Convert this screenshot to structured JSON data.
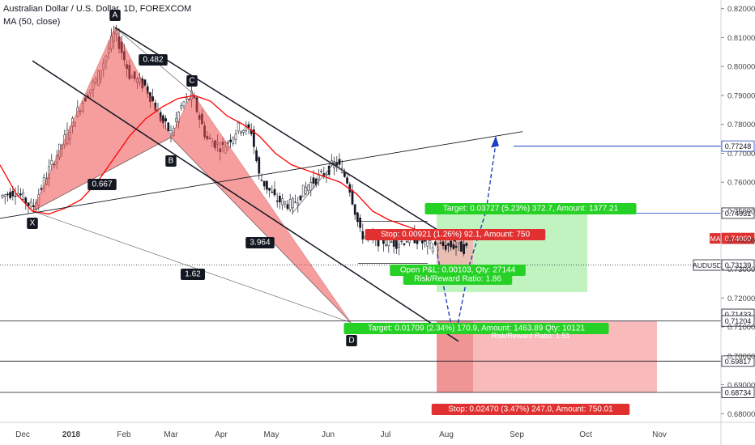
{
  "header": {
    "title": "Australian Dollar / U.S. Dollar, 1D, FOREXCOM",
    "indicator": "MA (50, close)"
  },
  "colors": {
    "bull": "#131722",
    "pattern_fill": "#f05050",
    "ma_line": "#ff0000",
    "projection": "#1f3fbf",
    "target_green": "#26d126",
    "stop_red": "#e03030",
    "profit_zone": "#b2f0b2",
    "loss_zone": "#f5a3a3"
  },
  "chart_data": {
    "type": "candlestick",
    "x_axis_labels": [
      "Dec",
      "2018",
      "Feb",
      "Mar",
      "Apr",
      "May",
      "Jun",
      "Jul",
      "Aug",
      "Sep",
      "Oct",
      "Nov"
    ],
    "y_axis": {
      "ticks": [
        "0.82000",
        "0.81000",
        "0.80000",
        "0.79000",
        "0.78000",
        "0.77000",
        "0.76000",
        "0.75000",
        "0.74000",
        "0.73000",
        "0.72000",
        "0.71000",
        "0.70000",
        "0.69000",
        "0.68000"
      ],
      "ylim": [
        0.677,
        0.823
      ]
    },
    "price_badges": [
      {
        "label": "0.77248",
        "value": 0.77248,
        "style": "blue-outline"
      },
      {
        "label": "0.74931",
        "value": 0.74931,
        "style": "plain"
      },
      {
        "label": "0.74060",
        "value": 0.7406,
        "style": "red"
      },
      {
        "label": "0.73139",
        "value": 0.73139,
        "style": "plain"
      },
      {
        "label": "0.71433",
        "value": 0.71433,
        "style": "plain"
      },
      {
        "label": "0.71204",
        "value": 0.71204,
        "style": "plain"
      },
      {
        "label": "0.69817",
        "value": 0.69817,
        "style": "plain"
      },
      {
        "label": "0.68734",
        "value": 0.68734,
        "style": "plain"
      }
    ],
    "tag_labels": {
      "ma": "MA",
      "symbol": "AUDUSD"
    },
    "pattern_points": [
      {
        "label": "X",
        "date": "2017-12-08",
        "price": 0.75
      },
      {
        "label": "A",
        "date": "2018-01-26",
        "price": 0.8135
      },
      {
        "label": "B",
        "date": "2018-02-09",
        "price": 0.776
      },
      {
        "label": "C",
        "date": "2018-02-16",
        "price": 0.7915
      },
      {
        "label": "D",
        "date": "2018-05-09",
        "price": 0.7115
      }
    ],
    "ratios": [
      {
        "label": "0.482"
      },
      {
        "label": "0.667"
      },
      {
        "label": "3.964"
      },
      {
        "label": "1.62"
      }
    ],
    "trade_boxes": {
      "long_target": "Target: 0.03727 (5.23%) 372.7, Amount: 1377.21",
      "short_stop": "Stop: 0.00921 (1.26%) 92.1, Amount: 750",
      "open_pl": "Open P&L: 0.00103, Qty: 27144",
      "rr1": "Risk/Reward Ratio: 1.86",
      "target2": "Target: 0.01709 (2.34%) 170.9, Amount: 1463.89  Qty: 10121",
      "rr2": "Risk/Reward Ratio: 1.51",
      "stop2": "Stop: 0.02470 (3.47%) 247.0, Amount: 750.01"
    },
    "horizontal_levels": [
      0.77248,
      0.74931,
      0.73139,
      0.71204,
      0.69817,
      0.68734
    ],
    "series": [
      {
        "name": "MA (50, close)",
        "type": "line",
        "points": [
          [
            0,
            0.766
          ],
          [
            20,
            0.756
          ],
          [
            40,
            0.75
          ],
          [
            60,
            0.749
          ],
          [
            80,
            0.751
          ],
          [
            100,
            0.754
          ],
          [
            120,
            0.76
          ],
          [
            140,
            0.768
          ],
          [
            160,
            0.776
          ],
          [
            180,
            0.782
          ],
          [
            200,
            0.786
          ],
          [
            220,
            0.789
          ],
          [
            240,
            0.79
          ],
          [
            260,
            0.788
          ],
          [
            280,
            0.783
          ],
          [
            300,
            0.78
          ],
          [
            320,
            0.776
          ],
          [
            340,
            0.77
          ],
          [
            360,
            0.766
          ],
          [
            380,
            0.764
          ],
          [
            400,
            0.762
          ],
          [
            420,
            0.76
          ],
          [
            440,
            0.756
          ],
          [
            460,
            0.75
          ],
          [
            480,
            0.747
          ],
          [
            500,
            0.745
          ],
          [
            520,
            0.743
          ],
          [
            540,
            0.7415
          ],
          [
            560,
            0.7406
          ],
          [
            580,
            0.7406
          ]
        ]
      }
    ],
    "candles_ohlc_sample_note": ""
  }
}
